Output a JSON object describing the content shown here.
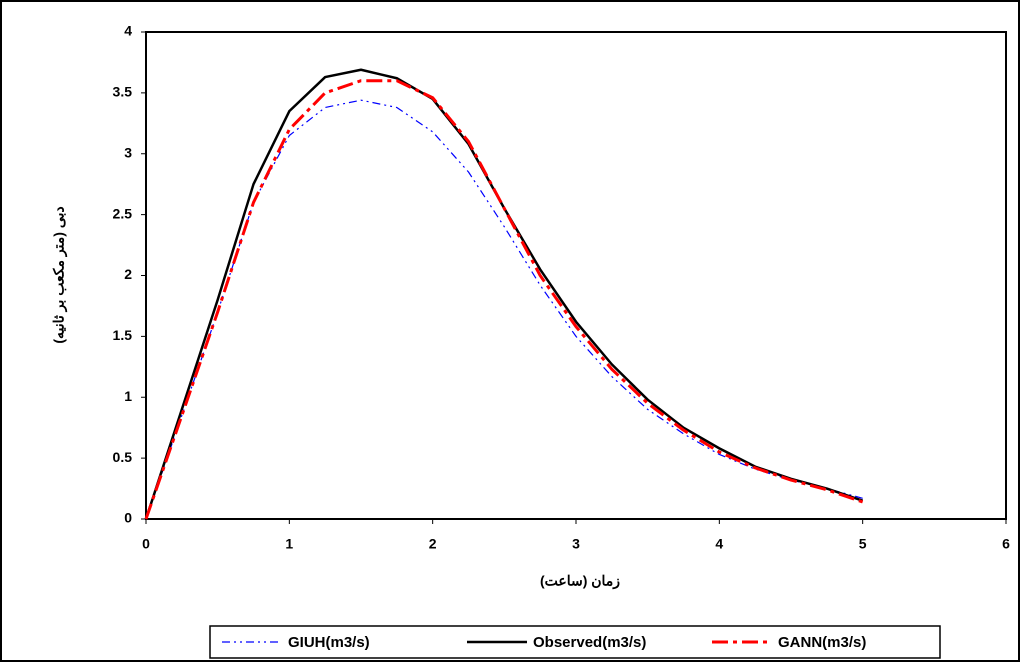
{
  "chart_data": {
    "type": "line",
    "x_label": "زمان (ساعت)",
    "y_label": "دبی (متر مکعب بر ثانیه)",
    "x": [
      0,
      0.25,
      0.5,
      0.75,
      1,
      1.25,
      1.5,
      1.75,
      2,
      2.25,
      2.5,
      2.75,
      3,
      3.25,
      3.5,
      3.75,
      4,
      4.25,
      4.5,
      4.75,
      5
    ],
    "series": [
      {
        "name": "GIUH(m3/s)",
        "color": "#0000ff",
        "style": "dash-dot-dot",
        "values": [
          0,
          0.85,
          1.7,
          2.6,
          3.15,
          3.38,
          3.44,
          3.38,
          3.18,
          2.85,
          2.4,
          1.92,
          1.5,
          1.17,
          0.9,
          0.7,
          0.53,
          0.41,
          0.32,
          0.25,
          0.17
        ]
      },
      {
        "name": "Observed(m3/s)",
        "color": "#000000",
        "style": "solid",
        "values": [
          0,
          0.9,
          1.8,
          2.75,
          3.35,
          3.63,
          3.69,
          3.62,
          3.45,
          3.08,
          2.55,
          2.05,
          1.62,
          1.27,
          0.98,
          0.75,
          0.58,
          0.43,
          0.33,
          0.25,
          0.15
        ]
      },
      {
        "name": "GANN(m3/s)",
        "color": "#ff0000",
        "style": "dash-dot",
        "values": [
          0,
          0.85,
          1.7,
          2.6,
          3.2,
          3.5,
          3.6,
          3.6,
          3.46,
          3.1,
          2.55,
          2.0,
          1.58,
          1.23,
          0.95,
          0.73,
          0.55,
          0.42,
          0.32,
          0.24,
          0.14
        ]
      }
    ],
    "xlim": [
      0,
      6
    ],
    "xticks": [
      0,
      1,
      2,
      3,
      4,
      5,
      6
    ],
    "ylim": [
      0,
      4
    ],
    "yticks": [
      0,
      0.5,
      1,
      1.5,
      2,
      2.5,
      3,
      3.5,
      4
    ],
    "legend": "bottom"
  }
}
